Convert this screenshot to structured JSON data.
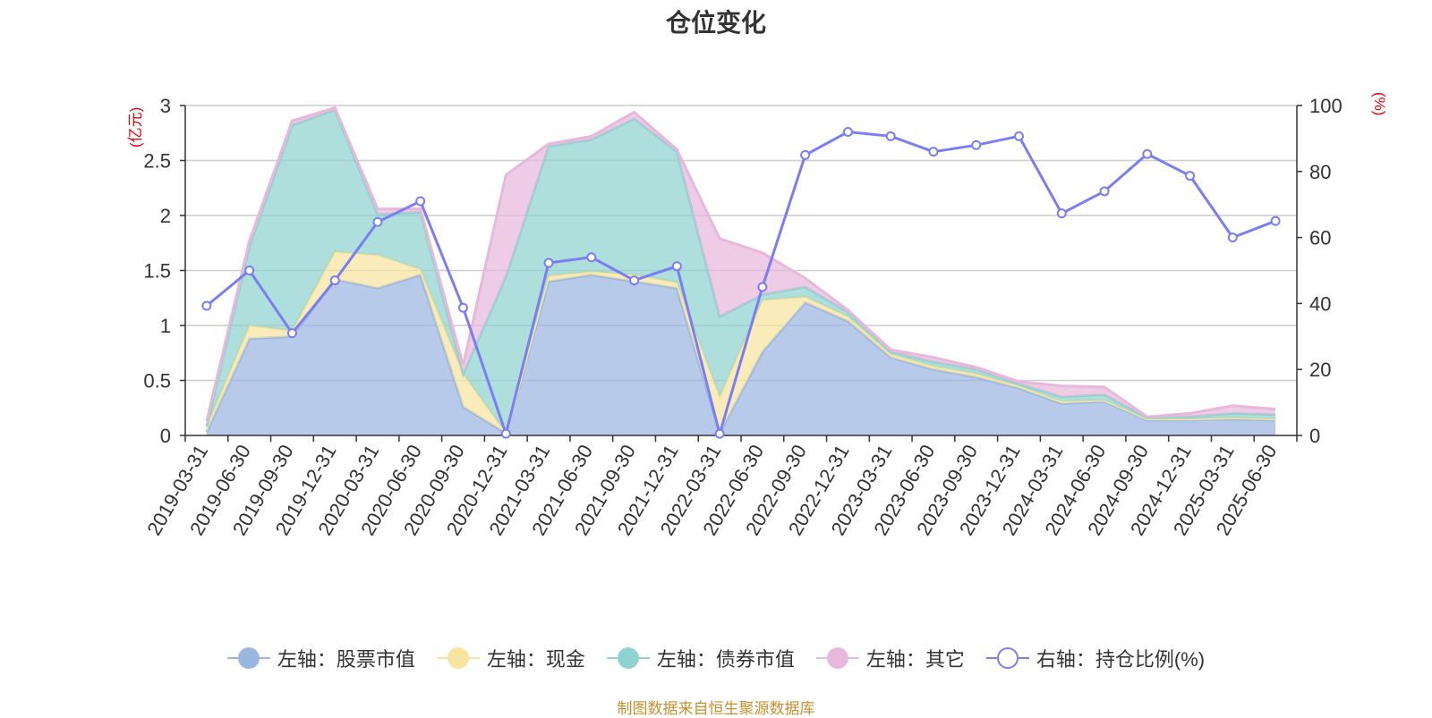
{
  "title": "仓位变化",
  "left_axis_unit": "(亿元)",
  "right_axis_unit": "(%)",
  "source": "制图数据来自恒生聚源数据库",
  "legend": [
    {
      "label": "左轴：股票市值",
      "color": "#9bb6e0",
      "symbol": "filled-circle"
    },
    {
      "label": "左轴：现金",
      "color": "#f8e4a0",
      "symbol": "filled-circle"
    },
    {
      "label": "左轴：债券市值",
      "color": "#8fd3d0",
      "symbol": "filled-circle"
    },
    {
      "label": "左轴：其它",
      "color": "#e8b8dc",
      "symbol": "filled-circle"
    },
    {
      "label": "右轴：持仓比例(%)",
      "color": "#7b7ef0",
      "symbol": "hollow-circle"
    }
  ],
  "chart_data": {
    "type": "area",
    "stacked": true,
    "x": [
      "2019-03-31",
      "2019-06-30",
      "2019-09-30",
      "2019-12-31",
      "2020-03-31",
      "2020-06-30",
      "2020-09-30",
      "2020-12-31",
      "2021-03-31",
      "2021-06-30",
      "2021-09-30",
      "2021-12-31",
      "2022-03-31",
      "2022-06-30",
      "2022-09-30",
      "2022-12-31",
      "2023-03-31",
      "2023-06-30",
      "2023-09-30",
      "2023-12-31",
      "2024-03-31",
      "2024-06-30",
      "2024-09-30",
      "2024-12-31",
      "2025-03-31",
      "2025-06-30"
    ],
    "y_left": {
      "min": 0,
      "max": 3,
      "ticks": [
        "0",
        "0.5",
        "1",
        "1.5",
        "2",
        "2.5",
        "3"
      ]
    },
    "y_right": {
      "min": 0,
      "max": 100,
      "ticks": [
        "0",
        "20",
        "40",
        "60",
        "80",
        "100"
      ]
    },
    "grid": true,
    "legend_position": "bottom",
    "series": [
      {
        "name": "左轴：股票市值",
        "axis": "left",
        "color": "#9bb6e0",
        "values": [
          0.03,
          0.88,
          0.9,
          1.42,
          1.34,
          1.46,
          0.26,
          0.02,
          1.4,
          1.46,
          1.4,
          1.34,
          0.02,
          0.76,
          1.21,
          1.04,
          0.71,
          0.6,
          0.53,
          0.43,
          0.29,
          0.31,
          0.14,
          0.14,
          0.15,
          0.14
        ]
      },
      {
        "name": "左轴：现金",
        "axis": "left",
        "color": "#f8e4a0",
        "values": [
          0.05,
          0.12,
          0.05,
          0.25,
          0.3,
          0.05,
          0.3,
          0.0,
          0.05,
          0.03,
          0.06,
          0.05,
          0.33,
          0.47,
          0.05,
          0.04,
          0.03,
          0.03,
          0.03,
          0.02,
          0.02,
          0.01,
          0.01,
          0.01,
          0.01,
          0.01
        ]
      },
      {
        "name": "左轴：债券市值",
        "axis": "left",
        "color": "#8fd3d0",
        "values": [
          0.0,
          0.72,
          1.87,
          1.29,
          0.37,
          0.52,
          0.0,
          1.42,
          1.18,
          1.2,
          1.42,
          1.19,
          0.73,
          0.05,
          0.09,
          0.04,
          0.02,
          0.04,
          0.04,
          0.02,
          0.04,
          0.05,
          0.01,
          0.02,
          0.04,
          0.04
        ]
      },
      {
        "name": "左轴：其它",
        "axis": "left",
        "color": "#e8b8dc",
        "values": [
          0.05,
          0.05,
          0.04,
          0.02,
          0.05,
          0.03,
          0.08,
          0.93,
          0.02,
          0.03,
          0.06,
          0.02,
          0.71,
          0.38,
          0.08,
          0.02,
          0.02,
          0.04,
          0.02,
          0.02,
          0.1,
          0.07,
          0.01,
          0.03,
          0.07,
          0.05
        ]
      },
      {
        "name": "右轴：持仓比例(%)",
        "axis": "right",
        "type": "line",
        "color": "#7b7ef0",
        "values": [
          39.3,
          50.0,
          31.0,
          47.0,
          64.7,
          71.0,
          38.7,
          0.5,
          52.3,
          54.0,
          47.0,
          51.3,
          0.5,
          45.0,
          85.0,
          92.0,
          90.7,
          86.0,
          88.0,
          90.7,
          67.3,
          74.0,
          85.3,
          78.7,
          60.0,
          65.0
        ]
      }
    ]
  }
}
